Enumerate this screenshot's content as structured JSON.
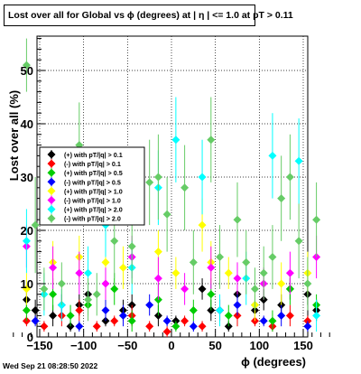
{
  "title": "Lost over all for Global vs ϕ (degrees) at |  η | <= 1.0 at pT > 0.11",
  "footer": "Wed Sep 21 08:28:50 2022",
  "chart_data": {
    "type": "scatter",
    "xlabel": "ϕ (degrees)",
    "ylabel": "Lost over all (%)",
    "xlim": [
      -180,
      180
    ],
    "ylim": [
      0,
      56
    ],
    "xticks": [
      -150,
      -100,
      -50,
      0,
      50,
      100,
      150
    ],
    "xtick_labels": [
      "−150",
      "−100",
      "−50",
      "0",
      "50",
      "100",
      "150"
    ],
    "yticks": [
      0,
      10,
      20,
      30,
      40,
      50
    ],
    "grid": true,
    "legend_position": "left",
    "series": [
      {
        "name": "(+) with pT/|q| > 0.1",
        "color": "#000000",
        "x": [
          -165,
          -155,
          -135,
          -115,
          -105,
          -95,
          -75,
          -55,
          -45,
          -15,
          5,
          35,
          45,
          65,
          75,
          95,
          105,
          125,
          135,
          155,
          165
        ],
        "y": [
          7,
          5,
          4,
          2,
          6,
          8,
          3,
          5,
          6,
          4,
          3,
          9,
          5,
          2,
          8,
          5,
          7,
          6,
          9,
          8,
          5
        ],
        "err": [
          2,
          2,
          2,
          1,
          2,
          2,
          1,
          2,
          2,
          2,
          1,
          2,
          2,
          1,
          2,
          2,
          2,
          2,
          2,
          2,
          2
        ]
      },
      {
        "name": "(-) with pT/|q| > 0.1",
        "color": "#ff0000",
        "x": [
          -165,
          -145,
          -125,
          -105,
          -85,
          -65,
          -45,
          -25,
          -5,
          15,
          35,
          55,
          75,
          95,
          115,
          135,
          155
        ],
        "y": [
          3,
          2,
          4,
          5,
          2,
          3,
          4,
          2,
          1,
          3,
          2,
          5,
          4,
          3,
          2,
          4,
          3
        ],
        "err": [
          1,
          1,
          2,
          2,
          1,
          1,
          2,
          1,
          1,
          1,
          1,
          2,
          2,
          1,
          1,
          2,
          1
        ]
      },
      {
        "name": "(+) with pT/|q| > 0.5",
        "color": "#00cc00",
        "x": [
          -165,
          -135,
          -115,
          -95,
          -65,
          -45,
          -15,
          5,
          25,
          45,
          65,
          95,
          115,
          135,
          165
        ],
        "y": [
          5,
          8,
          4,
          6,
          9,
          3,
          7,
          2,
          5,
          8,
          4,
          6,
          3,
          9,
          6
        ],
        "err": [
          2,
          3,
          2,
          2,
          3,
          2,
          3,
          1,
          2,
          3,
          2,
          2,
          2,
          3,
          2
        ]
      },
      {
        "name": "(-) with pT/|q| > 0.5",
        "color": "#0000ff",
        "x": [
          -155,
          -125,
          -105,
          -75,
          -55,
          -25,
          -5,
          25,
          55,
          75,
          105,
          125,
          155
        ],
        "y": [
          3,
          6,
          2,
          5,
          4,
          6,
          3,
          2,
          5,
          6,
          3,
          4,
          2
        ],
        "err": [
          1,
          2,
          1,
          2,
          2,
          2,
          1,
          1,
          2,
          2,
          1,
          2,
          1
        ]
      },
      {
        "name": "(+) with pT/|q| > 1.0",
        "color": "#ffff00",
        "x": [
          -165,
          -135,
          -105,
          -75,
          -55,
          -15,
          5,
          35,
          45,
          65,
          95,
          125,
          155
        ],
        "y": [
          9,
          14,
          15,
          14,
          13,
          16,
          12,
          21,
          14,
          12,
          6,
          10,
          12
        ],
        "err": [
          3,
          4,
          4,
          4,
          4,
          4,
          3,
          5,
          4,
          3,
          3,
          4,
          4
        ]
      },
      {
        "name": "(-) with pT/|q| > 1.0",
        "color": "#ff00ff",
        "x": [
          -165,
          -135,
          -105,
          -75,
          -45,
          -15,
          15,
          45,
          75,
          105,
          135,
          165
        ],
        "y": [
          17,
          13,
          12,
          10,
          15,
          11,
          9,
          13,
          11,
          10,
          12,
          15
        ],
        "err": [
          4,
          4,
          4,
          3,
          4,
          4,
          3,
          4,
          3,
          3,
          4,
          4
        ]
      },
      {
        "name": "(+) with pT/|q| > 2.0",
        "color": "#00ffff",
        "x": [
          -165,
          -145,
          -125,
          -95,
          -75,
          -45,
          -15,
          5,
          35,
          55,
          85,
          115,
          145,
          165
        ],
        "y": [
          18,
          8,
          6,
          12,
          21,
          13,
          28,
          37,
          30,
          5,
          11,
          34,
          33,
          4
        ],
        "err": [
          6,
          4,
          3,
          5,
          6,
          5,
          7,
          8,
          7,
          3,
          5,
          8,
          8,
          3
        ]
      },
      {
        "name": "(-) with pT/|q| > 2.0",
        "color": "#66cc66",
        "x": [
          -165,
          -155,
          -145,
          -125,
          -105,
          -95,
          -85,
          -65,
          -45,
          -25,
          -15,
          -5,
          15,
          25,
          45,
          55,
          75,
          85,
          95,
          105,
          115,
          125,
          135,
          145,
          155,
          165
        ],
        "y": [
          51,
          21,
          9,
          10,
          36,
          7,
          8,
          18,
          17,
          29,
          30,
          23,
          28,
          14,
          37,
          15,
          22,
          14,
          9,
          12,
          15,
          26,
          30,
          18,
          10,
          22
        ],
        "err": [
          5,
          9,
          4,
          4,
          8,
          4,
          4,
          7,
          7,
          8,
          8,
          7,
          8,
          6,
          8,
          6,
          7,
          6,
          4,
          5,
          6,
          8,
          8,
          7,
          5,
          7
        ]
      }
    ]
  }
}
